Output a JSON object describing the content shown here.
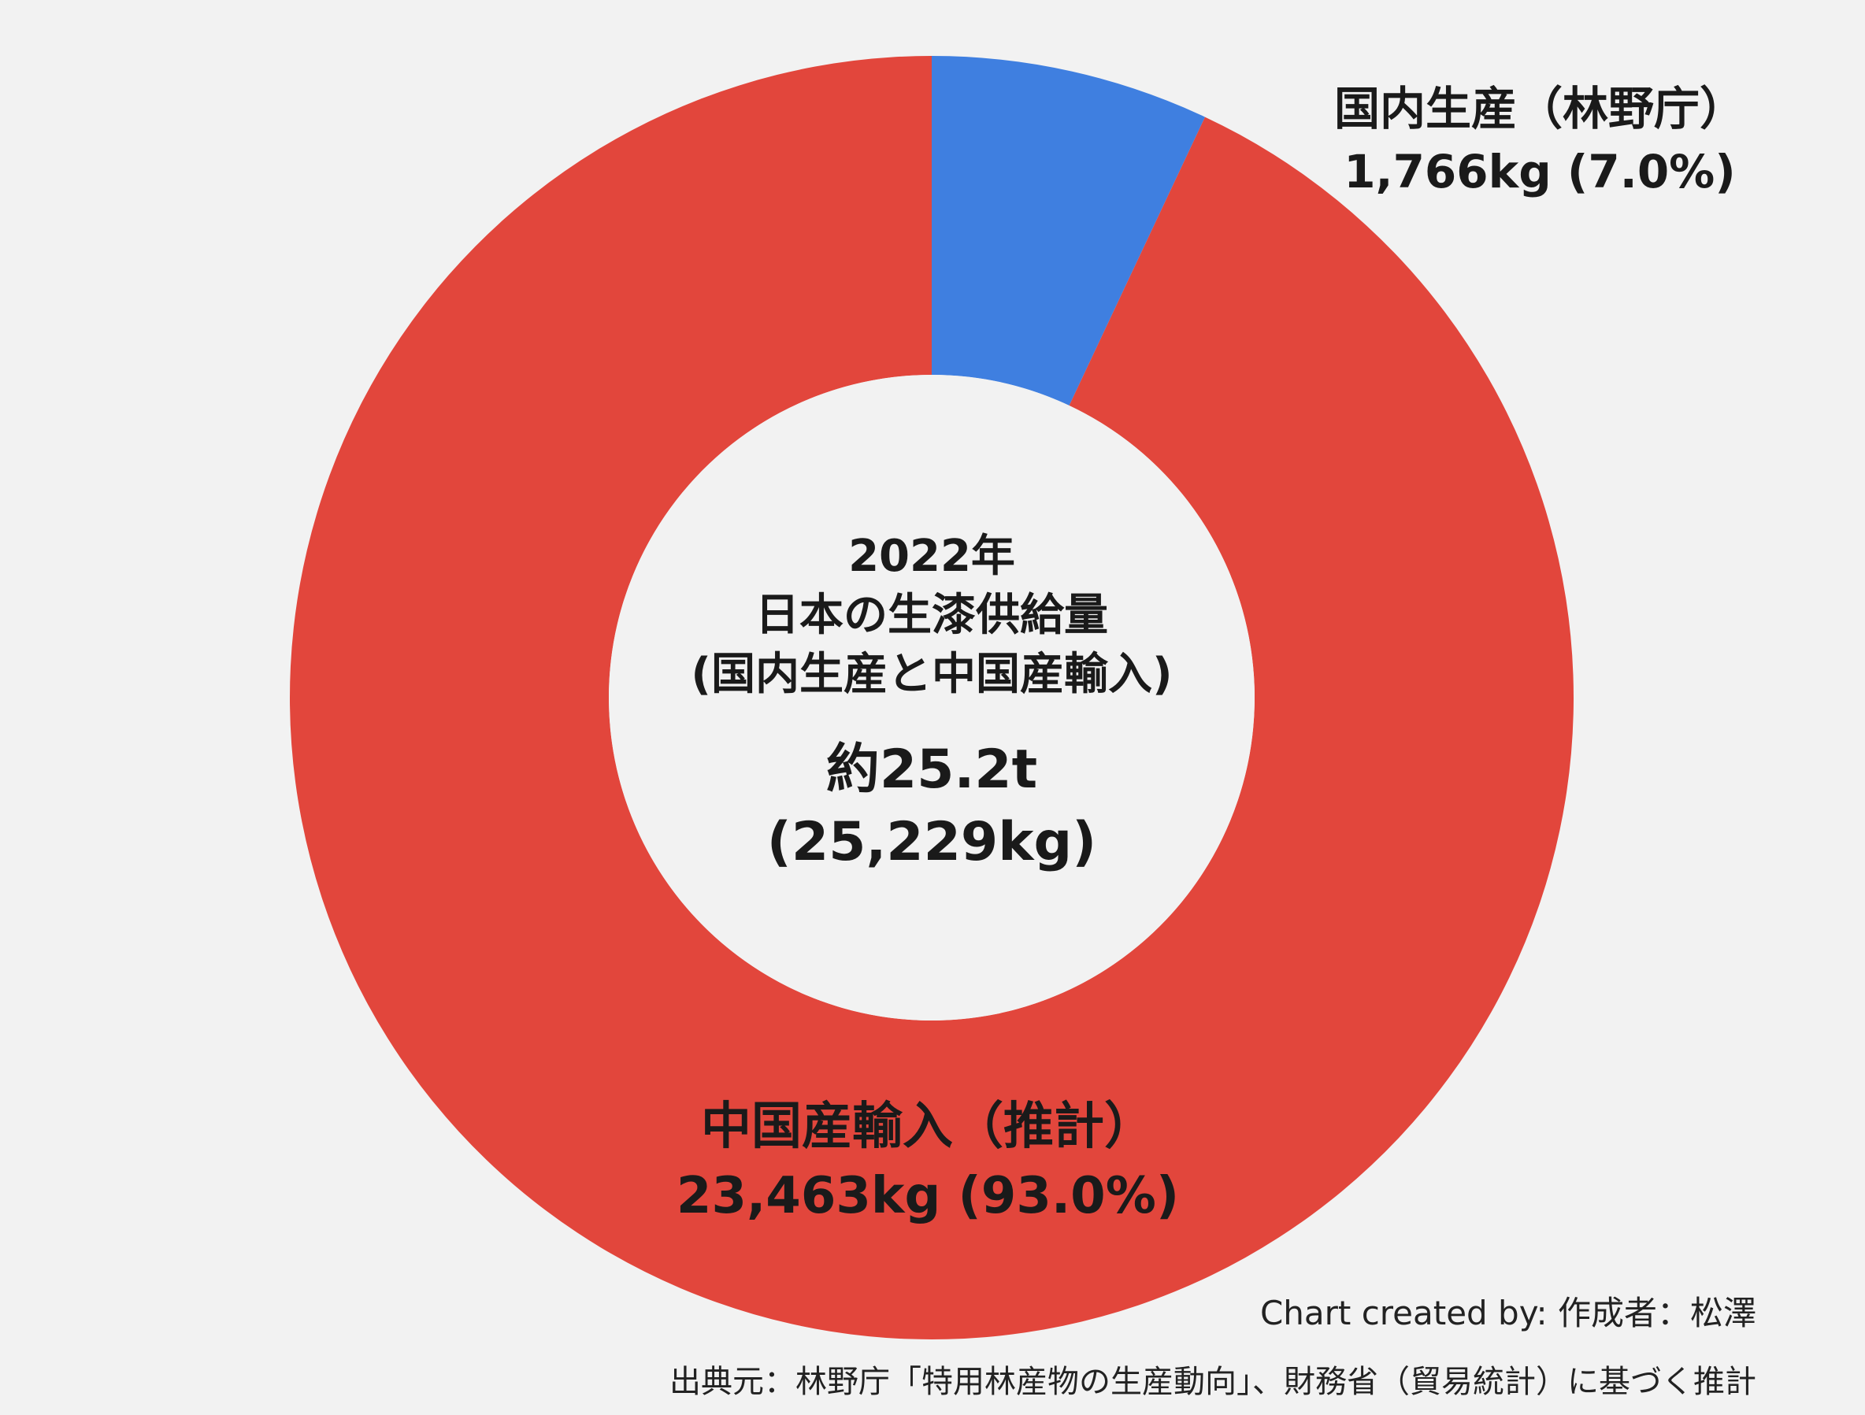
{
  "chart_data": {
    "type": "pie",
    "donut": true,
    "slices": [
      {
        "label": "国内生産（林野庁）",
        "value": 1766,
        "value_label": "1,766kg (7.0%)",
        "color": "#3f7fe0"
      },
      {
        "label": "中国産輸入（推計）",
        "value": 23463,
        "value_label": "23,463kg (93.0%)",
        "color": "#e2463c"
      }
    ],
    "center": {
      "year": "2022年",
      "title": "日本の生漆供給量",
      "subtitle": "(国内生産と中国産輸入)",
      "total": "約25.2t",
      "total_kg": "(25,229kg)"
    },
    "credit": "Chart created by: 作成者：松澤",
    "source": "出典元：林野庁「特用林産物の生産動向」、財務省（貿易統計）に基づく推計"
  }
}
